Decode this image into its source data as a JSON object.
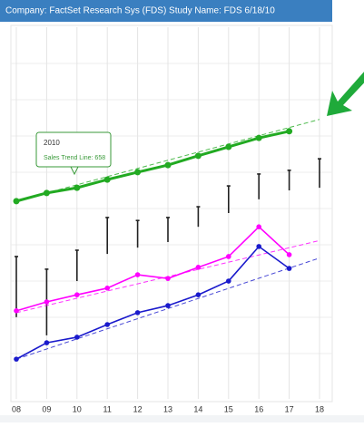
{
  "header": "Company: FactSet Research Sys (FDS)   Study Name: FDS 6/18/10",
  "tooltip": {
    "title": "2010",
    "text": "Sales Trend Line: 658"
  },
  "chart_data": {
    "type": "line",
    "categories": [
      "08",
      "09",
      "10",
      "11",
      "12",
      "13",
      "14",
      "15",
      "16",
      "17",
      "18"
    ],
    "ylim": [
      0,
      100
    ],
    "grid": true,
    "series": [
      {
        "color": "#22aa22",
        "width": 3,
        "values": [
          53.2,
          55.4,
          56.8,
          59.0,
          61.0,
          62.9,
          65.4,
          67.8,
          70.2,
          72.0,
          null
        ],
        "trend": [
          53.2,
          75.2
        ]
      },
      {
        "color": "#ff00ff",
        "width": 1.6,
        "values": [
          23.7,
          26.1,
          28.0,
          29.8,
          33.4,
          32.4,
          35.4,
          38.3,
          46.3,
          38.8,
          null
        ],
        "trend": [
          23.2,
          42.6
        ]
      },
      {
        "color": "#1a1acc",
        "width": 1.6,
        "values": [
          10.7,
          15.1,
          16.6,
          20.0,
          23.2,
          25.1,
          28.0,
          31.7,
          41.0,
          35.1,
          null
        ],
        "trend": [
          10.7,
          37.9
        ]
      }
    ],
    "ranges": {
      "color": "#222222",
      "low": [
        22.0,
        17.1,
        31.7,
        39.0,
        40.7,
        42.2,
        46.3,
        50.0,
        53.7,
        56.1,
        56.8
      ],
      "high": [
        38.3,
        34.9,
        40.0,
        48.8,
        48.0,
        48.8,
        51.7,
        57.3,
        60.5,
        61.5,
        64.6
      ]
    }
  }
}
